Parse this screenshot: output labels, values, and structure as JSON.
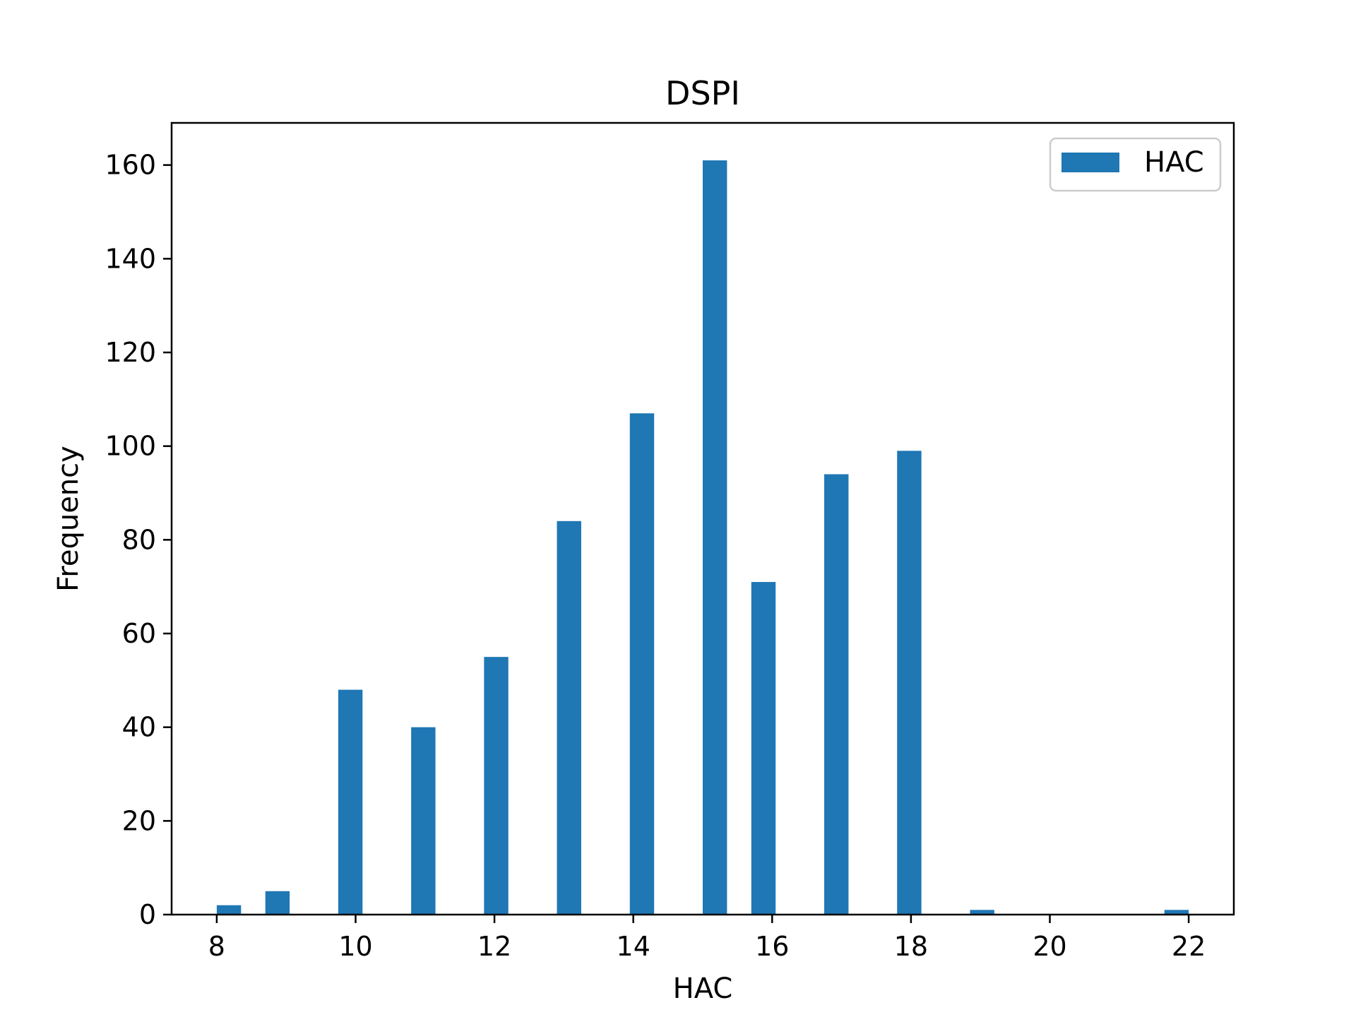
{
  "chart_data": {
    "type": "bar",
    "title": "DSPI",
    "xlabel": "HAC",
    "ylabel": "Frequency",
    "xlim": [
      7.35,
      22.65
    ],
    "ylim": [
      0,
      169
    ],
    "xticks": [
      8,
      10,
      12,
      14,
      16,
      18,
      20,
      22
    ],
    "yticks": [
      0,
      20,
      40,
      60,
      80,
      100,
      120,
      140,
      160
    ],
    "bar_width": 0.35,
    "grid": false,
    "legend": {
      "position": "top-right",
      "entries": [
        "HAC"
      ]
    },
    "series": [
      {
        "name": "HAC",
        "color": "#1f77b4",
        "bars": [
          {
            "x": 8.0,
            "value": 2
          },
          {
            "x": 8.7,
            "value": 5
          },
          {
            "x": 9.75,
            "value": 48
          },
          {
            "x": 10.8,
            "value": 40
          },
          {
            "x": 11.85,
            "value": 55
          },
          {
            "x": 12.9,
            "value": 84
          },
          {
            "x": 13.95,
            "value": 107
          },
          {
            "x": 15.0,
            "value": 161
          },
          {
            "x": 15.7,
            "value": 71
          },
          {
            "x": 16.75,
            "value": 94
          },
          {
            "x": 17.8,
            "value": 99
          },
          {
            "x": 18.85,
            "value": 1
          },
          {
            "x": 21.65,
            "value": 1
          }
        ]
      }
    ]
  }
}
